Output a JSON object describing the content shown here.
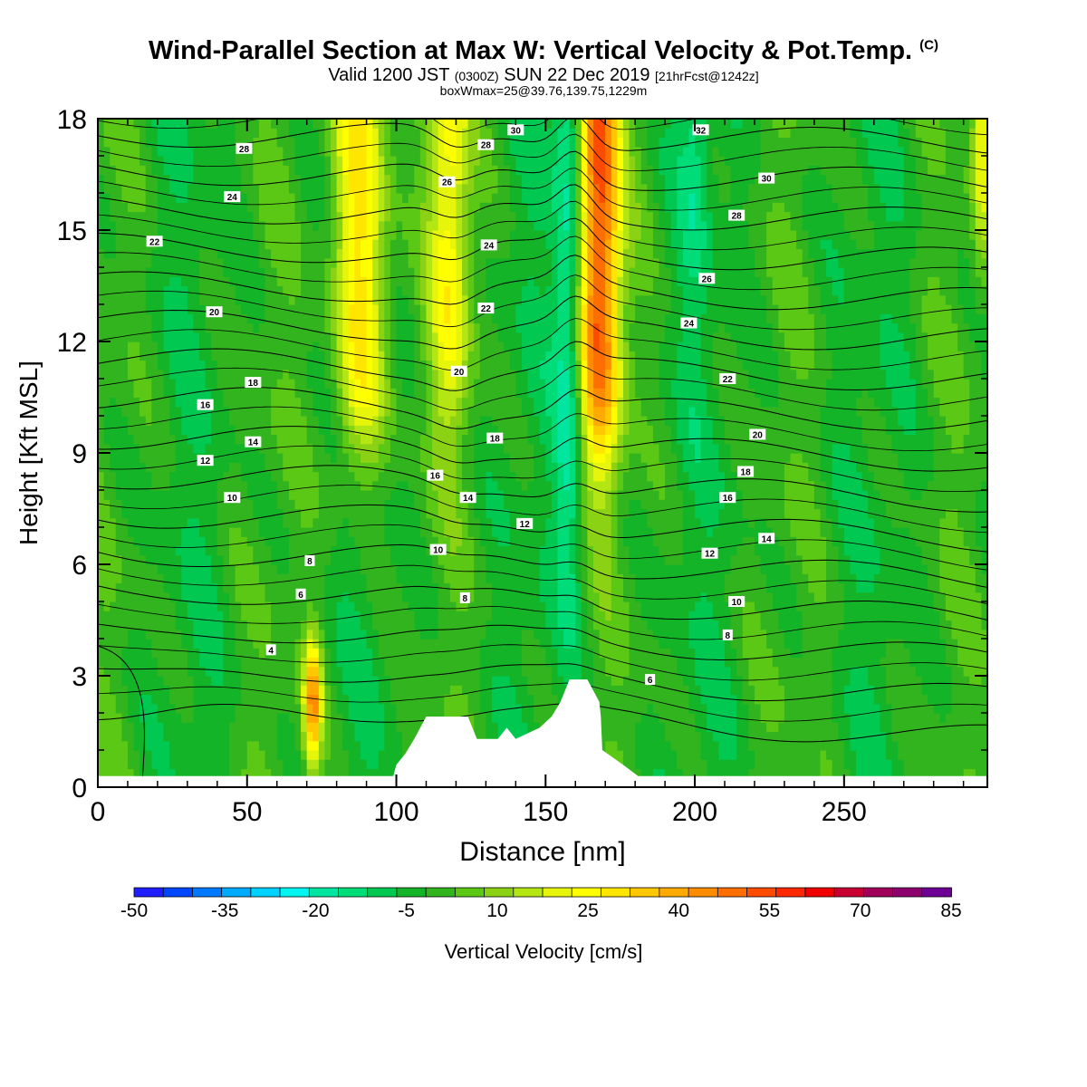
{
  "header": {
    "title": "Wind-Parallel Section at Max W: Vertical Velocity & Pot.Temp.",
    "title_mark": "(C)",
    "valid_a": "Valid 1200 JST",
    "valid_utc": "(0300Z)",
    "valid_b": "SUN 22 Dec 2019",
    "fcst": "[21hrFcst@1242z]",
    "box": "boxWmax=25@39.76,139.75,1229m"
  },
  "chart_data": {
    "type": "heatmap",
    "xlabel": "Distance [nm]",
    "ylabel": "Height [Kft MSL]",
    "xlim": [
      0,
      298
    ],
    "ylim": [
      0,
      18
    ],
    "x_ticks": [
      0,
      50,
      100,
      150,
      200,
      250
    ],
    "y_ticks": [
      0,
      3,
      6,
      9,
      12,
      15,
      18
    ],
    "background_w": 0,
    "updrafts": [
      {
        "x": 88,
        "z_base": 9,
        "w_max": 35,
        "width": 9
      },
      {
        "x": 118,
        "z_base": 10,
        "w_max": 25,
        "width": 7
      },
      {
        "x": 168,
        "z_base": 9,
        "w_max": 55,
        "width": 7
      },
      {
        "x": 72,
        "z_base": 0.5,
        "w_max": 45,
        "width": 3,
        "z_top": 4
      },
      {
        "x": 296,
        "z_base": 15,
        "w_max": 25,
        "width": 3
      }
    ],
    "downdrafts": [
      {
        "x": 158,
        "z_base": 6,
        "w_min": -20,
        "width": 5
      },
      {
        "x": 200,
        "z_base": 14,
        "w_min": -12,
        "width": 5
      }
    ],
    "terrain": [
      [
        0,
        0.3
      ],
      [
        99,
        0.3
      ],
      [
        100,
        0.6
      ],
      [
        103,
        0.9
      ],
      [
        106,
        1.3
      ],
      [
        110,
        1.9
      ],
      [
        124,
        1.9
      ],
      [
        127,
        1.3
      ],
      [
        134,
        1.3
      ],
      [
        137,
        1.6
      ],
      [
        140,
        1.3
      ],
      [
        148,
        1.6
      ],
      [
        152,
        1.9
      ],
      [
        155,
        2.3
      ],
      [
        158,
        2.9
      ],
      [
        164,
        2.9
      ],
      [
        168,
        2.3
      ],
      [
        168.5,
        1.9
      ],
      [
        169,
        1.0
      ],
      [
        176,
        0.6
      ],
      [
        181,
        0.3
      ],
      [
        298,
        0.3
      ]
    ],
    "theta_levels": [
      2,
      4,
      6,
      8,
      10,
      12,
      14,
      16,
      18,
      20,
      22,
      24,
      26,
      28,
      30,
      32
    ],
    "theta_labels": [
      {
        "text": "28",
        "x": 49,
        "z": 17.2
      },
      {
        "text": "24",
        "x": 45,
        "z": 15.9
      },
      {
        "text": "22",
        "x": 19,
        "z": 14.7
      },
      {
        "text": "20",
        "x": 39,
        "z": 12.8
      },
      {
        "text": "18",
        "x": 52,
        "z": 10.9
      },
      {
        "text": "16",
        "x": 36,
        "z": 10.3
      },
      {
        "text": "14",
        "x": 52,
        "z": 9.3
      },
      {
        "text": "12",
        "x": 36,
        "z": 8.8
      },
      {
        "text": "10",
        "x": 45,
        "z": 7.8
      },
      {
        "text": "8",
        "x": 71,
        "z": 6.1
      },
      {
        "text": "6",
        "x": 68,
        "z": 5.2
      },
      {
        "text": "4",
        "x": 58,
        "z": 3.7
      },
      {
        "text": "30",
        "x": 140,
        "z": 17.7
      },
      {
        "text": "28",
        "x": 130,
        "z": 17.3
      },
      {
        "text": "26",
        "x": 117,
        "z": 16.3
      },
      {
        "text": "24",
        "x": 131,
        "z": 14.6
      },
      {
        "text": "22",
        "x": 130,
        "z": 12.9
      },
      {
        "text": "20",
        "x": 121,
        "z": 11.2
      },
      {
        "text": "18",
        "x": 133,
        "z": 9.4
      },
      {
        "text": "16",
        "x": 113,
        "z": 8.4
      },
      {
        "text": "14",
        "x": 124,
        "z": 7.8
      },
      {
        "text": "12",
        "x": 143,
        "z": 7.1
      },
      {
        "text": "10",
        "x": 114,
        "z": 6.4
      },
      {
        "text": "8",
        "x": 123,
        "z": 5.1
      },
      {
        "text": "32",
        "x": 202,
        "z": 17.7
      },
      {
        "text": "30",
        "x": 224,
        "z": 16.4
      },
      {
        "text": "28",
        "x": 214,
        "z": 15.4
      },
      {
        "text": "26",
        "x": 204,
        "z": 13.7
      },
      {
        "text": "24",
        "x": 198,
        "z": 12.5
      },
      {
        "text": "22",
        "x": 211,
        "z": 11.0
      },
      {
        "text": "20",
        "x": 221,
        "z": 9.5
      },
      {
        "text": "18",
        "x": 217,
        "z": 8.5
      },
      {
        "text": "16",
        "x": 211,
        "z": 7.8
      },
      {
        "text": "14",
        "x": 224,
        "z": 6.7
      },
      {
        "text": "12",
        "x": 205,
        "z": 6.3
      },
      {
        "text": "10",
        "x": 214,
        "z": 5.0
      },
      {
        "text": "8",
        "x": 211,
        "z": 4.1
      },
      {
        "text": "6",
        "x": 185,
        "z": 2.9
      }
    ]
  },
  "colorbar": {
    "label": "Vertical Velocity [cm/s]",
    "tick_labels": [
      "-50",
      "-35",
      "-20",
      "-5",
      "10",
      "25",
      "40",
      "55",
      "70",
      "85"
    ],
    "colors": [
      "#1e1eff",
      "#0046ff",
      "#0078ff",
      "#00aaff",
      "#00d2ff",
      "#00f5f0",
      "#00e6a0",
      "#00dc78",
      "#00c850",
      "#14b428",
      "#32b41e",
      "#5ac814",
      "#8cd214",
      "#b4e614",
      "#e6f50a",
      "#ffff00",
      "#ffe600",
      "#ffc800",
      "#ffaa00",
      "#ff8c00",
      "#ff6e00",
      "#ff4b00",
      "#ff2800",
      "#f00000",
      "#c80032",
      "#a0005a",
      "#8c006e",
      "#6e0096"
    ]
  }
}
